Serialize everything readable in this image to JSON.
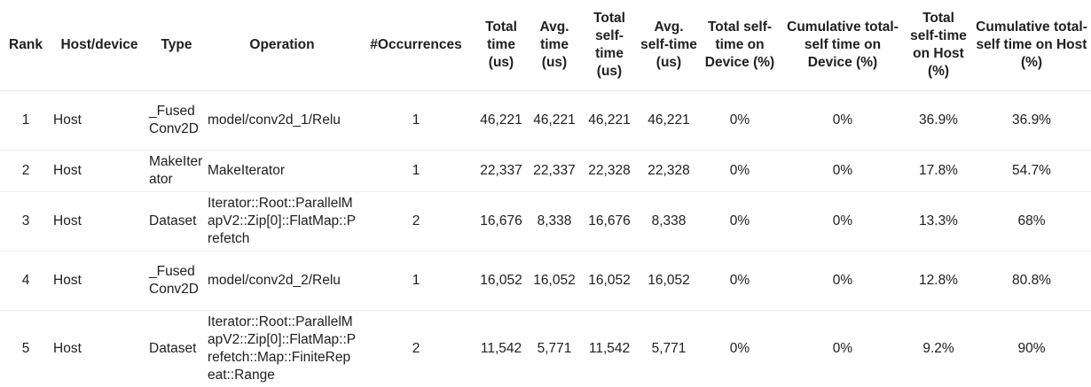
{
  "columns": [
    "Rank",
    "Host/device",
    "Type",
    "Operation",
    "#Occurrences",
    "Total time (us)",
    "Avg. time (us)",
    "Total self-time (us)",
    "Avg. self-time (us)",
    "Total self-time on Device (%)",
    "Cumulative total-self time on Device (%)",
    "Total self-time on Host (%)",
    "Cumulative total-self time on Host (%)"
  ],
  "rows": [
    {
      "rank": "1",
      "host_device": "Host",
      "type": "_FusedConv2D",
      "operation": "model/conv2d_1/Relu",
      "occurrences": "1",
      "total_time": "46,221",
      "avg_time": "46,221",
      "total_self_time": "46,221",
      "avg_self_time": "46,221",
      "self_device_pct": "0%",
      "cum_device_pct": "0%",
      "self_host_pct": "36.9%",
      "cum_host_pct": "36.9%"
    },
    {
      "rank": "2",
      "host_device": "Host",
      "type": "MakeIterator",
      "operation": "MakeIterator",
      "occurrences": "1",
      "total_time": "22,337",
      "avg_time": "22,337",
      "total_self_time": "22,328",
      "avg_self_time": "22,328",
      "self_device_pct": "0%",
      "cum_device_pct": "0%",
      "self_host_pct": "17.8%",
      "cum_host_pct": "54.7%"
    },
    {
      "rank": "3",
      "host_device": "Host",
      "type": "Dataset",
      "operation": "Iterator::Root::ParallelMapV2::Zip[0]::FlatMap::Prefetch",
      "occurrences": "2",
      "total_time": "16,676",
      "avg_time": "8,338",
      "total_self_time": "16,676",
      "avg_self_time": "8,338",
      "self_device_pct": "0%",
      "cum_device_pct": "0%",
      "self_host_pct": "13.3%",
      "cum_host_pct": "68%"
    },
    {
      "rank": "4",
      "host_device": "Host",
      "type": "_FusedConv2D",
      "operation": "model/conv2d_2/Relu",
      "occurrences": "1",
      "total_time": "16,052",
      "avg_time": "16,052",
      "total_self_time": "16,052",
      "avg_self_time": "16,052",
      "self_device_pct": "0%",
      "cum_device_pct": "0%",
      "self_host_pct": "12.8%",
      "cum_host_pct": "80.8%"
    },
    {
      "rank": "5",
      "host_device": "Host",
      "type": "Dataset",
      "operation": "Iterator::Root::ParallelMapV2::Zip[0]::FlatMap::Prefetch::Map::FiniteRepeat::Range",
      "occurrences": "2",
      "total_time": "11,542",
      "avg_time": "5,771",
      "total_self_time": "11,542",
      "avg_self_time": "5,771",
      "self_device_pct": "0%",
      "cum_device_pct": "0%",
      "self_host_pct": "9.2%",
      "cum_host_pct": "90%"
    }
  ]
}
